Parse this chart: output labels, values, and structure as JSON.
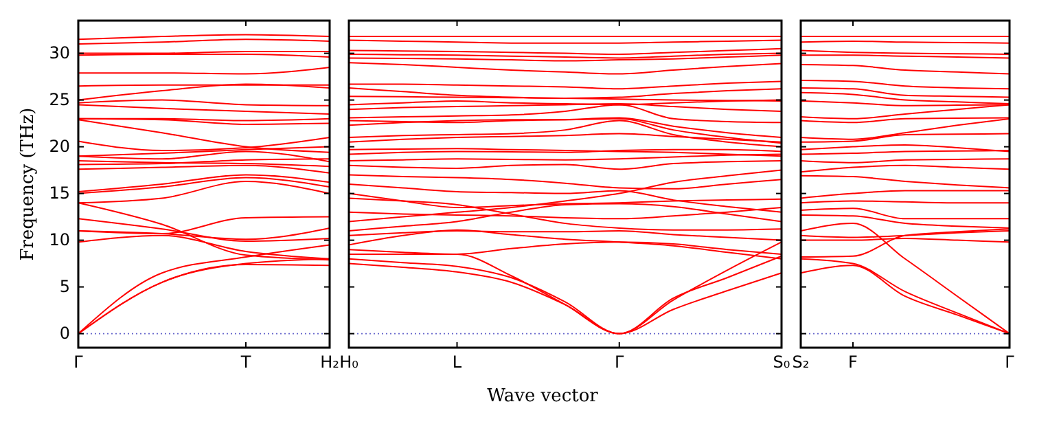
{
  "chart_data": [
    {
      "type": "line",
      "ylabel": "Frequency (THz)",
      "categories": [
        "Γ",
        null,
        "T",
        "H₂"
      ],
      "ylim": [
        -1.5,
        33.5
      ],
      "yticks": [
        0,
        5,
        10,
        15,
        20,
        25,
        30
      ],
      "ref_lines": [
        {
          "axis": "y",
          "value": 0,
          "color": "#6666cc",
          "line_style": "dotted"
        }
      ],
      "series": [
        {
          "color": "#ff0000",
          "values": [
            31.5,
            31.8,
            32,
            31.8
          ]
        },
        {
          "color": "#ff0000",
          "values": [
            31,
            31.2,
            31.5,
            31.3
          ]
        },
        {
          "color": "#ff0000",
          "values": [
            30,
            30,
            30.2,
            30.2
          ]
        },
        {
          "color": "#ff0000",
          "values": [
            29.8,
            29.9,
            29.9,
            29.6
          ]
        },
        {
          "color": "#ff0000",
          "values": [
            27.9,
            27.9,
            27.8,
            28.5
          ]
        },
        {
          "color": "#ff0000",
          "values": [
            26.5,
            26.6,
            26.6,
            26.6
          ]
        },
        {
          "color": "#ff0000",
          "values": [
            25,
            26,
            26.7,
            26.3
          ]
        },
        {
          "color": "#ff0000",
          "values": [
            24.7,
            25,
            24.5,
            24.4
          ]
        },
        {
          "color": "#ff0000",
          "values": [
            24.5,
            24.1,
            23.8,
            23.5
          ]
        },
        {
          "color": "#ff0000",
          "values": [
            23,
            23,
            22.8,
            23
          ]
        },
        {
          "color": "#ff0000",
          "values": [
            23,
            22.9,
            22.4,
            22.5
          ]
        },
        {
          "color": "#ff0000",
          "values": [
            22.9,
            21.5,
            20,
            19.4
          ]
        },
        {
          "color": "#ff0000",
          "values": [
            20.6,
            19.6,
            19.9,
            21
          ]
        },
        {
          "color": "#ff0000",
          "values": [
            19,
            19.3,
            19.7,
            20
          ]
        },
        {
          "color": "#ff0000",
          "values": [
            19,
            18.7,
            19.5,
            18.4
          ]
        },
        {
          "color": "#ff0000",
          "values": [
            18.5,
            18.3,
            18.2,
            17.9
          ]
        },
        {
          "color": "#ff0000",
          "values": [
            18.1,
            18.2,
            18.6,
            18.7
          ]
        },
        {
          "color": "#ff0000",
          "values": [
            17.6,
            17.8,
            18,
            17.2
          ]
        },
        {
          "color": "#ff0000",
          "values": [
            15.2,
            16,
            17,
            16.2
          ]
        },
        {
          "color": "#ff0000",
          "values": [
            15,
            15.7,
            16.7,
            15.7
          ]
        },
        {
          "color": "#ff0000",
          "values": [
            14,
            14.5,
            16.3,
            15
          ]
        },
        {
          "color": "#ff0000",
          "values": [
            14,
            11.7,
            8.4,
            7.9
          ]
        },
        {
          "color": "#ff0000",
          "values": [
            12.3,
            11.2,
            9.9,
            10.2
          ]
        },
        {
          "color": "#ff0000",
          "values": [
            11,
            10.7,
            12.4,
            12.5
          ]
        },
        {
          "color": "#ff0000",
          "values": [
            11,
            10.7,
            10.1,
            11.3
          ]
        },
        {
          "color": "#ff0000",
          "values": [
            9.8,
            10.5,
            8.8,
            8
          ]
        },
        {
          "color": "#ff0000",
          "values": [
            0,
            5.5,
            7.4,
            7.3
          ]
        },
        {
          "color": "#ff0000",
          "values": [
            0,
            5.5,
            7.5,
            8
          ]
        },
        {
          "color": "#ff0000",
          "values": [
            0,
            6.5,
            8.2,
            9.5
          ]
        }
      ]
    },
    {
      "type": "line",
      "xlabel": "Wave vector",
      "categories": [
        "H₀",
        null,
        "L",
        null,
        null,
        "Γ",
        null,
        null,
        "S₀"
      ],
      "ylim": [
        -1.5,
        33.5
      ],
      "yticks": [
        0,
        5,
        10,
        15,
        20,
        25,
        30
      ],
      "tick_labels": "x",
      "ref_lines": [
        {
          "axis": "y",
          "value": 0,
          "color": "#6666cc",
          "line_style": "dotted"
        }
      ],
      "series": [
        {
          "color": "#ff0000",
          "values": [
            31.8,
            31.8,
            31.8,
            31.8,
            31.8,
            31.8,
            31.8,
            31.8,
            31.8
          ]
        },
        {
          "color": "#ff0000",
          "values": [
            31.4,
            31.3,
            31.2,
            31.1,
            31.1,
            31.1,
            31.2,
            31.3,
            31.4
          ]
        },
        {
          "color": "#ff0000",
          "values": [
            30.3,
            30.25,
            30.2,
            30.1,
            30,
            29.9,
            30.1,
            30.3,
            30.5
          ]
        },
        {
          "color": "#ff0000",
          "values": [
            29.9,
            29.85,
            29.8,
            29.7,
            29.6,
            29.5,
            29.7,
            29.9,
            30
          ]
        },
        {
          "color": "#ff0000",
          "values": [
            29.5,
            29.45,
            29.4,
            29.3,
            29.2,
            29.3,
            29.4,
            29.6,
            29.8
          ]
        },
        {
          "color": "#ff0000",
          "values": [
            29,
            28.8,
            28.5,
            28.2,
            28,
            27.8,
            28.2,
            28.6,
            28.9
          ]
        },
        {
          "color": "#ff0000",
          "values": [
            26.7,
            26.7,
            26.6,
            26.5,
            26.4,
            26.2,
            26.5,
            26.8,
            27
          ]
        },
        {
          "color": "#ff0000",
          "values": [
            26.3,
            25.9,
            25.5,
            25.3,
            25.2,
            25.3,
            25.7,
            26,
            26.2
          ]
        },
        {
          "color": "#ff0000",
          "values": [
            25.4,
            25.35,
            25.3,
            25.25,
            25.2,
            25.1,
            25,
            24.95,
            24.9
          ]
        },
        {
          "color": "#ff0000",
          "values": [
            24.5,
            24.7,
            24.9,
            24.7,
            24.6,
            24.5,
            24.7,
            24.9,
            25
          ]
        },
        {
          "color": "#ff0000",
          "values": [
            24,
            24.2,
            24.3,
            24.4,
            24.5,
            24.6,
            24.3,
            24,
            23.8
          ]
        },
        {
          "color": "#ff0000",
          "values": [
            23.1,
            23.2,
            23.3,
            23.4,
            23.8,
            24.5,
            23,
            22.7,
            22.6
          ]
        },
        {
          "color": "#ff0000",
          "values": [
            22.8,
            22.7,
            22.6,
            22.8,
            22.9,
            23.1,
            22.2,
            21.5,
            21
          ]
        },
        {
          "color": "#ff0000",
          "values": [
            22.3,
            22.6,
            22.8,
            22.9,
            22.9,
            23,
            21.8,
            21,
            20.4
          ]
        },
        {
          "color": "#ff0000",
          "values": [
            21,
            21.2,
            21.3,
            21.4,
            21.8,
            22.8,
            21.3,
            20.5,
            20
          ]
        },
        {
          "color": "#ff0000",
          "values": [
            20.5,
            20.8,
            21,
            21.1,
            21.2,
            21.4,
            21.1,
            20.8,
            20.5
          ]
        },
        {
          "color": "#ff0000",
          "values": [
            19.7,
            19.75,
            19.8,
            19.7,
            19.6,
            19.5,
            19.4,
            19.2,
            19
          ]
        },
        {
          "color": "#ff0000",
          "values": [
            19.2,
            19.4,
            19.5,
            19.45,
            19.4,
            19.6,
            19.7,
            19.7,
            19.5
          ]
        },
        {
          "color": "#ff0000",
          "values": [
            18.5,
            18.6,
            18.7,
            18.65,
            18.6,
            18.7,
            18.9,
            19.1,
            19.2
          ]
        },
        {
          "color": "#ff0000",
          "values": [
            18,
            17.8,
            17.7,
            18,
            18.1,
            17.6,
            18.2,
            18.4,
            18.5
          ]
        },
        {
          "color": "#ff0000",
          "values": [
            17,
            16.8,
            16.7,
            16.5,
            16.1,
            15.6,
            15.5,
            16,
            16.5
          ]
        },
        {
          "color": "#ff0000",
          "values": [
            16,
            15.6,
            15.2,
            15.1,
            15,
            15.3,
            14.3,
            13.6,
            13
          ]
        },
        {
          "color": "#ff0000",
          "values": [
            15,
            14.2,
            13.5,
            13.7,
            13.9,
            14,
            14.2,
            14.3,
            14.4
          ]
        },
        {
          "color": "#ff0000",
          "values": [
            14.5,
            14.2,
            13.8,
            12.8,
            11.8,
            11.3,
            11.1,
            11.1,
            11.2
          ]
        },
        {
          "color": "#ff0000",
          "values": [
            13,
            12.8,
            12.7,
            12.6,
            12.4,
            12.3,
            12.6,
            13,
            13.5
          ]
        },
        {
          "color": "#ff0000",
          "values": [
            12,
            12.5,
            13,
            13.5,
            14.2,
            15,
            16.2,
            16.9,
            17.5
          ]
        },
        {
          "color": "#ff0000",
          "values": [
            11,
            11.5,
            12,
            13,
            13.8,
            13.9,
            13.6,
            12.8,
            12
          ]
        },
        {
          "color": "#ff0000",
          "values": [
            10.5,
            10.8,
            11,
            10.9,
            10.9,
            11,
            10.6,
            10.3,
            10
          ]
        },
        {
          "color": "#ff0000",
          "values": [
            9.5,
            10.5,
            11.1,
            10.6,
            10.1,
            9.8,
            9.4,
            8.7,
            8
          ]
        },
        {
          "color": "#ff0000",
          "values": [
            9,
            8.7,
            8.5,
            9.1,
            9.6,
            9.8,
            9.6,
            9,
            8.5
          ]
        },
        {
          "color": "#ff0000",
          "values": [
            7.5,
            7.1,
            6.6,
            5.5,
            3.1,
            0,
            2.6,
            4.6,
            6.5
          ]
        },
        {
          "color": "#ff0000",
          "values": [
            8,
            7.6,
            7.2,
            6,
            3.4,
            0,
            3.8,
            6,
            8.3
          ]
        },
        {
          "color": "#ff0000",
          "values": [
            8.5,
            8.5,
            8.5,
            6.2,
            3.1,
            0,
            3.6,
            6.8,
            9.8
          ]
        }
      ]
    },
    {
      "type": "line",
      "categories": [
        "S₂",
        "F",
        null,
        null,
        "Γ"
      ],
      "ylim": [
        -1.5,
        33.5
      ],
      "yticks": [
        0,
        5,
        10,
        15,
        20,
        25,
        30
      ],
      "tick_labels": "x",
      "ref_lines": [
        {
          "axis": "y",
          "value": 0,
          "color": "#6666cc",
          "line_style": "dotted"
        }
      ],
      "series": [
        {
          "color": "#ff0000",
          "values": [
            31.8,
            31.8,
            31.8,
            31.8,
            31.8
          ]
        },
        {
          "color": "#ff0000",
          "values": [
            31.2,
            31.3,
            31.2,
            31.15,
            31.1
          ]
        },
        {
          "color": "#ff0000",
          "values": [
            30.3,
            30.1,
            30,
            29.95,
            29.9
          ]
        },
        {
          "color": "#ff0000",
          "values": [
            29.8,
            29.8,
            29.7,
            29.6,
            29.5
          ]
        },
        {
          "color": "#ff0000",
          "values": [
            28.8,
            28.7,
            28.2,
            28,
            27.8
          ]
        },
        {
          "color": "#ff0000",
          "values": [
            27.1,
            27,
            26.5,
            26.3,
            26.2
          ]
        },
        {
          "color": "#ff0000",
          "values": [
            26.3,
            26.2,
            25.5,
            25.4,
            25.3
          ]
        },
        {
          "color": "#ff0000",
          "values": [
            25.8,
            25.6,
            25,
            24.8,
            24.6
          ]
        },
        {
          "color": "#ff0000",
          "values": [
            24.9,
            24.7,
            24.4,
            24.45,
            24.5
          ]
        },
        {
          "color": "#ff0000",
          "values": [
            23.2,
            23,
            23.5,
            24,
            24.5
          ]
        },
        {
          "color": "#ff0000",
          "values": [
            22.8,
            22.6,
            23,
            23.05,
            23.1
          ]
        },
        {
          "color": "#ff0000",
          "values": [
            21,
            20.8,
            21.5,
            22.3,
            23
          ]
        },
        {
          "color": "#ff0000",
          "values": [
            20.5,
            20.6,
            21.3,
            21.35,
            21.4
          ]
        },
        {
          "color": "#ff0000",
          "values": [
            19.7,
            20,
            20.2,
            19.9,
            19.5
          ]
        },
        {
          "color": "#ff0000",
          "values": [
            19.2,
            19.3,
            19.5,
            19.55,
            19.6
          ]
        },
        {
          "color": "#ff0000",
          "values": [
            18.5,
            18.3,
            18.6,
            18.65,
            18.7
          ]
        },
        {
          "color": "#ff0000",
          "values": [
            17.3,
            17.8,
            18,
            17.8,
            17.6
          ]
        },
        {
          "color": "#ff0000",
          "values": [
            16.9,
            16.8,
            16.3,
            15.9,
            15.6
          ]
        },
        {
          "color": "#ff0000",
          "values": [
            14.5,
            15,
            15.3,
            15.3,
            15.3
          ]
        },
        {
          "color": "#ff0000",
          "values": [
            14,
            14.2,
            14.1,
            14,
            14
          ]
        },
        {
          "color": "#ff0000",
          "values": [
            13.2,
            13.4,
            12.3,
            12.3,
            12.3
          ]
        },
        {
          "color": "#ff0000",
          "values": [
            12.7,
            12.6,
            11.8,
            11.5,
            11.3
          ]
        },
        {
          "color": "#ff0000",
          "values": [
            10.5,
            10.3,
            10.5,
            10.8,
            11
          ]
        },
        {
          "color": "#ff0000",
          "values": [
            10,
            10,
            10.2,
            10,
            9.8
          ]
        },
        {
          "color": "#ff0000",
          "values": [
            8.2,
            8.3,
            10.5,
            10.9,
            11.2
          ]
        },
        {
          "color": "#ff0000",
          "values": [
            8,
            7.5,
            4.5,
            2.2,
            0
          ]
        },
        {
          "color": "#ff0000",
          "values": [
            6.5,
            7.3,
            4,
            2,
            0
          ]
        },
        {
          "color": "#ff0000",
          "values": [
            11,
            11.8,
            8,
            4,
            0
          ]
        }
      ]
    }
  ]
}
